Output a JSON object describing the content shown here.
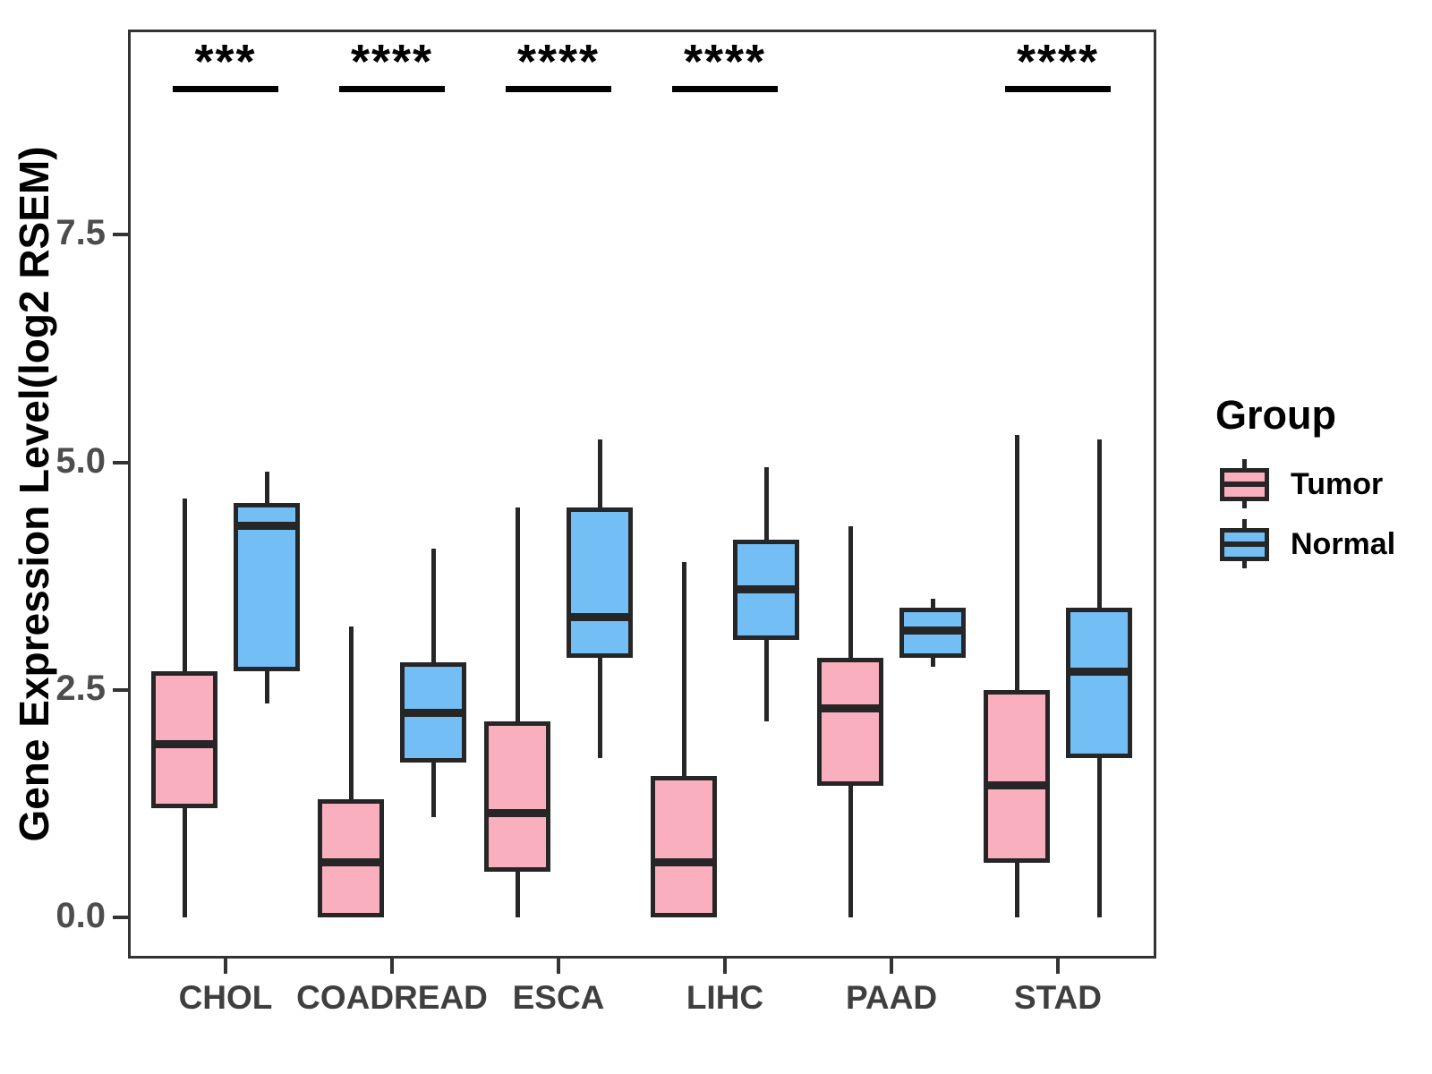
{
  "y_axis": {
    "label": "Gene Expression Level(log2 RSEM)",
    "ticks": [
      {
        "label": "0.0",
        "value": 0
      },
      {
        "label": "2.5",
        "value": 2.5
      },
      {
        "label": "5.0",
        "value": 5
      },
      {
        "label": "7.5",
        "value": 7.5
      }
    ]
  },
  "x_axis": {
    "categories": [
      "CHOL",
      "COADREAD",
      "ESCA",
      "LIHC",
      "PAAD",
      "STAD"
    ]
  },
  "legend": {
    "title": "Group",
    "items": [
      {
        "label": "Tumor",
        "color": "#FAAFBE"
      },
      {
        "label": "Normal",
        "color": "#74BEF6"
      }
    ]
  },
  "colors": {
    "box_stroke": "#262626",
    "panel_border": "#333333",
    "y_tick_text": "#4D4D4D",
    "x_tick_text": "#3F3F3F",
    "annotation": "#000000"
  },
  "chart_data": {
    "type": "boxplot",
    "title": "",
    "xlabel": "",
    "ylabel": "Gene Expression Level(log2 RSEM)",
    "categories": [
      "CHOL",
      "COADREAD",
      "ESCA",
      "LIHC",
      "PAAD",
      "STAD"
    ],
    "ylim": [
      -0.45,
      9.75
    ],
    "yticks": [
      0,
      2.5,
      5,
      7.5
    ],
    "grid": false,
    "legend_position": "right",
    "series": [
      {
        "name": "Tumor",
        "color": "#FAAFBE",
        "boxes": [
          {
            "category": "CHOL",
            "min": 0,
            "q1": 1.2,
            "median": 1.9,
            "q3": 2.7,
            "max": 4.6
          },
          {
            "category": "COADREAD",
            "min": 0,
            "q1": 0,
            "median": 0.6,
            "q3": 1.3,
            "max": 3.2
          },
          {
            "category": "ESCA",
            "min": 0,
            "q1": 0.5,
            "median": 1.15,
            "q3": 2.15,
            "max": 4.5
          },
          {
            "category": "LIHC",
            "min": 0,
            "q1": 0,
            "median": 0.6,
            "q3": 1.55,
            "max": 3.9
          },
          {
            "category": "PAAD",
            "min": 0,
            "q1": 1.45,
            "median": 2.3,
            "q3": 2.85,
            "max": 4.3
          },
          {
            "category": "STAD",
            "min": 0,
            "q1": 0.6,
            "median": 1.45,
            "q3": 2.5,
            "max": 5.3
          }
        ]
      },
      {
        "name": "Normal",
        "color": "#74BEF6",
        "boxes": [
          {
            "category": "CHOL",
            "min": 2.35,
            "q1": 2.7,
            "median": 4.3,
            "q3": 4.55,
            "max": 4.9
          },
          {
            "category": "COADREAD",
            "min": 1.1,
            "q1": 1.7,
            "median": 2.25,
            "q3": 2.8,
            "max": 4.05
          },
          {
            "category": "ESCA",
            "min": 1.75,
            "q1": 2.85,
            "median": 3.3,
            "q3": 4.5,
            "max": 5.25
          },
          {
            "category": "LIHC",
            "min": 2.15,
            "q1": 3.05,
            "median": 3.6,
            "q3": 4.15,
            "max": 4.95
          },
          {
            "category": "PAAD",
            "min": 2.75,
            "q1": 2.85,
            "median": 3.15,
            "q3": 3.4,
            "max": 3.5
          },
          {
            "category": "STAD",
            "min": 0,
            "q1": 1.75,
            "median": 2.7,
            "q3": 3.4,
            "max": 5.25
          }
        ]
      }
    ],
    "significance": [
      {
        "category": "CHOL",
        "label": "***"
      },
      {
        "category": "COADREAD",
        "label": "****"
      },
      {
        "category": "ESCA",
        "label": "****"
      },
      {
        "category": "LIHC",
        "label": "****"
      },
      {
        "category": "STAD",
        "label": "****"
      }
    ]
  }
}
